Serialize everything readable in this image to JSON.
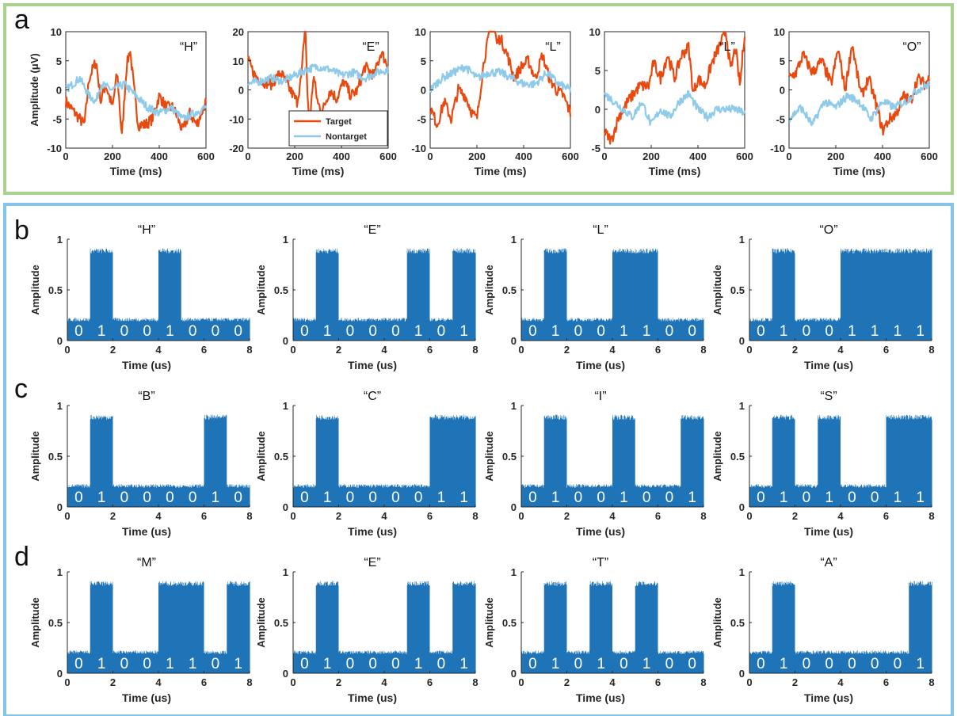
{
  "colors": {
    "target": "#e8490f",
    "nontarget": "#8ecae9",
    "bars": "#1f74b8",
    "panel_a_border": "#a7d18e",
    "panel_bcd_border": "#85c4ea"
  },
  "panel_letters": {
    "a": "a",
    "b": "b",
    "c": "c",
    "d": "d"
  },
  "chart_data": [
    {
      "panel": "a",
      "type": "line",
      "xlabel": "Time (ms)",
      "ylabel": "Amplitude (μV)",
      "legend": {
        "placement": "bottom-right of plot 2",
        "entries": [
          "Target",
          "Nontarget"
        ]
      },
      "xlim": [
        0,
        600
      ],
      "xticks": [
        0,
        200,
        400,
        600
      ],
      "subplots": [
        {
          "title": "“H”",
          "ylim": [
            -10,
            10
          ],
          "yticks": [
            -10,
            -5,
            0,
            5,
            10
          ],
          "series": [
            {
              "name": "Target",
              "key_t": [
                0,
                40,
                80,
                100,
                130,
                150,
                170,
                200,
                220,
                240,
                260,
                275,
                290,
                310,
                340,
                370,
                400,
                430,
                460,
                500,
                530,
                560,
                600
              ],
              "key_v": [
                -2,
                -4,
                -6,
                2,
                5,
                -2,
                1,
                -3,
                3,
                -8,
                4,
                7,
                1,
                -6,
                -6,
                -5,
                -1,
                -3,
                -3,
                -7,
                -4,
                -6,
                -2
              ]
            },
            {
              "name": "Nontarget",
              "key_t": [
                0,
                30,
                60,
                100,
                130,
                150,
                200,
                250,
                300,
                350,
                400,
                450,
                500,
                550,
                600
              ],
              "key_v": [
                0,
                1,
                2,
                -1,
                -2,
                1,
                0,
                1,
                -1,
                -3,
                -4,
                -3,
                -5,
                -4,
                -3
              ]
            }
          ]
        },
        {
          "title": "“E”",
          "ylim": [
            -20,
            20
          ],
          "yticks": [
            -20,
            -10,
            0,
            10,
            20
          ],
          "series": [
            {
              "name": "Target",
              "key_t": [
                0,
                30,
                60,
                100,
                140,
                180,
                210,
                230,
                245,
                255,
                265,
                280,
                300,
                320,
                350,
                380,
                410,
                440,
                470,
                500,
                540,
                570,
                600
              ],
              "key_v": [
                10,
                5,
                3,
                2,
                6,
                0,
                -4,
                5,
                24,
                -3,
                -12,
                5,
                -5,
                -7,
                0,
                -3,
                3,
                -2,
                0,
                8,
                5,
                13,
                8
              ]
            },
            {
              "name": "Nontarget",
              "key_t": [
                0,
                50,
                100,
                150,
                200,
                250,
                300,
                350,
                400,
                450,
                500,
                550,
                600
              ],
              "key_v": [
                2,
                3,
                4,
                3,
                5,
                7,
                8,
                7,
                5,
                6,
                4,
                6,
                7
              ]
            }
          ]
        },
        {
          "title": "“L”",
          "ylim": [
            -10,
            10
          ],
          "yticks": [
            -10,
            -5,
            0,
            5,
            10
          ],
          "series": [
            {
              "name": "Target",
              "key_t": [
                0,
                30,
                60,
                90,
                120,
                150,
                180,
                200,
                230,
                255,
                270,
                285,
                300,
                330,
                360,
                390,
                420,
                450,
                480,
                510,
                540,
                570,
                600
              ],
              "key_v": [
                -3,
                -6,
                -2,
                -5,
                0,
                -1,
                -4,
                -5,
                5,
                10,
                12,
                8,
                9,
                6,
                2,
                4,
                5,
                2,
                6,
                2,
                0,
                -1,
                -4
              ]
            },
            {
              "name": "Nontarget",
              "key_t": [
                0,
                50,
                100,
                150,
                200,
                250,
                300,
                350,
                400,
                450,
                500,
                550,
                600
              ],
              "key_v": [
                0,
                2,
                3,
                4,
                2,
                3,
                3,
                2,
                1,
                1,
                3,
                1,
                0
              ]
            }
          ]
        },
        {
          "title": "“L”",
          "ylim": [
            -5,
            10
          ],
          "yticks": [
            -5,
            0,
            5,
            10
          ],
          "series": [
            {
              "name": "Target",
              "key_t": [
                0,
                30,
                60,
                100,
                150,
                190,
                210,
                240,
                270,
                300,
                330,
                360,
                380,
                400,
                430,
                460,
                490,
                520,
                540,
                560,
                580,
                600
              ],
              "key_v": [
                -3,
                -4,
                -1,
                1,
                3,
                3,
                6,
                4,
                7,
                4,
                7,
                8,
                2,
                4,
                3,
                6,
                8,
                10,
                5,
                8,
                3,
                10
              ]
            },
            {
              "name": "Nontarget",
              "key_t": [
                0,
                40,
                80,
                120,
                160,
                200,
                240,
                280,
                320,
                360,
                400,
                440,
                480,
                520,
                560,
                600
              ],
              "key_v": [
                2,
                1,
                0,
                -1,
                1,
                -2,
                0,
                -1,
                1,
                2,
                0,
                -1,
                0,
                0,
                0,
                -0.5
              ]
            }
          ]
        },
        {
          "title": "“O”",
          "ylim": [
            -10,
            10
          ],
          "yticks": [
            -10,
            -5,
            0,
            5,
            10
          ],
          "series": [
            {
              "name": "Target",
              "key_t": [
                0,
                30,
                60,
                100,
                140,
                180,
                210,
                240,
                270,
                290,
                310,
                340,
                370,
                400,
                430,
                460,
                490,
                520,
                550,
                580,
                600
              ],
              "key_v": [
                2,
                3,
                6,
                3,
                5,
                1,
                7,
                0,
                8,
                3,
                -1,
                2,
                -2,
                -7,
                -5,
                -4,
                -1,
                -2,
                2,
                1,
                2
              ]
            },
            {
              "name": "Nontarget",
              "key_t": [
                0,
                50,
                100,
                150,
                200,
                250,
                300,
                350,
                400,
                450,
                500,
                550,
                600
              ],
              "key_v": [
                -5,
                -3,
                -6,
                -2,
                -3,
                -1,
                -2,
                -5,
                -2,
                -3,
                -2,
                0,
                1
              ]
            }
          ]
        }
      ]
    },
    {
      "panel": "b",
      "type": "bar",
      "xlabel": "Time (us)",
      "ylabel": "Amplitude",
      "xlim": [
        0,
        8
      ],
      "xticks": [
        0,
        2,
        4,
        6,
        8
      ],
      "ylim": [
        0,
        1
      ],
      "yticks": [
        0,
        0.5,
        1
      ],
      "low_level": 0.2,
      "high_level": 0.88,
      "subplots": [
        {
          "title": "“H”",
          "bits": [
            "0",
            "1",
            "0",
            "0",
            "1",
            "0",
            "0",
            "0"
          ]
        },
        {
          "title": "“E”",
          "bits": [
            "0",
            "1",
            "0",
            "0",
            "0",
            "1",
            "0",
            "1"
          ]
        },
        {
          "title": "“L”",
          "bits": [
            "0",
            "1",
            "0",
            "0",
            "1",
            "1",
            "0",
            "0"
          ]
        },
        {
          "title": "“O”",
          "bits": [
            "0",
            "1",
            "0",
            "0",
            "1",
            "1",
            "1",
            "1"
          ]
        }
      ]
    },
    {
      "panel": "c",
      "type": "bar",
      "xlabel": "Time (us)",
      "ylabel": "Amplitude",
      "xlim": [
        0,
        8
      ],
      "xticks": [
        0,
        2,
        4,
        6,
        8
      ],
      "ylim": [
        0,
        1
      ],
      "yticks": [
        0,
        0.5,
        1
      ],
      "low_level": 0.2,
      "high_level": 0.88,
      "subplots": [
        {
          "title": "“B”",
          "bits": [
            "0",
            "1",
            "0",
            "0",
            "0",
            "0",
            "1",
            "0"
          ]
        },
        {
          "title": "“C”",
          "bits": [
            "0",
            "1",
            "0",
            "0",
            "0",
            "0",
            "1",
            "1"
          ]
        },
        {
          "title": "“I”",
          "bits": [
            "0",
            "1",
            "0",
            "0",
            "1",
            "0",
            "0",
            "1"
          ]
        },
        {
          "title": "“S”",
          "bits": [
            "0",
            "1",
            "0",
            "1",
            "0",
            "0",
            "1",
            "1"
          ]
        }
      ]
    },
    {
      "panel": "d",
      "type": "bar",
      "xlabel": "Time (us)",
      "ylabel": "Amplitude",
      "xlim": [
        0,
        8
      ],
      "xticks": [
        0,
        2,
        4,
        6,
        8
      ],
      "ylim": [
        0,
        1
      ],
      "yticks": [
        0,
        0.5,
        1
      ],
      "low_level": 0.2,
      "high_level": 0.88,
      "subplots": [
        {
          "title": "“M”",
          "bits": [
            "0",
            "1",
            "0",
            "0",
            "1",
            "1",
            "0",
            "1"
          ]
        },
        {
          "title": "“E”",
          "bits": [
            "0",
            "1",
            "0",
            "0",
            "0",
            "1",
            "0",
            "1"
          ]
        },
        {
          "title": "“T”",
          "bits": [
            "0",
            "1",
            "0",
            "1",
            "0",
            "1",
            "0",
            "0"
          ]
        },
        {
          "title": "“A”",
          "bits": [
            "0",
            "1",
            "0",
            "0",
            "0",
            "0",
            "0",
            "1"
          ]
        }
      ]
    }
  ]
}
